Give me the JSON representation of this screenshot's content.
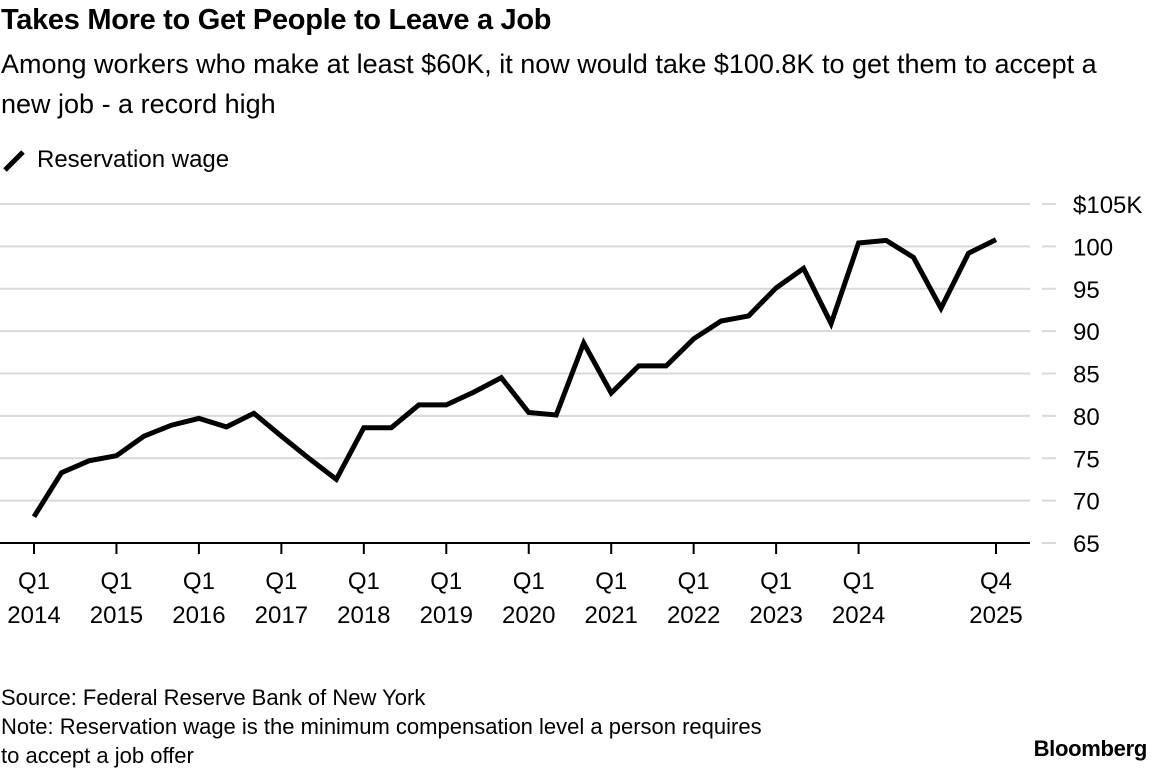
{
  "header": {
    "title": "Takes More to Get People to Leave a Job",
    "subtitle": "Among workers who make at least $60K, it now would take $100.8K to get them to accept a new job - a record high"
  },
  "legend": {
    "icon": "line-swatch-icon",
    "label": "Reservation wage"
  },
  "footer": {
    "source": "Source: Federal Reserve Bank of New York",
    "note_line1": "Note: Reservation wage is the minimum compensation level a person requires",
    "note_line2": "to accept a job offer",
    "brand": "Bloomberg"
  },
  "colors": {
    "line": "#000000",
    "grid": "#d9d9d9",
    "axis": "#000000"
  },
  "chart_data": {
    "type": "line",
    "title": "Takes More to Get People to Leave a Job",
    "subtitle": "Among workers who make at least $60K, it now would take $100.8K to get them to accept a new job - a record high",
    "xlabel": "",
    "ylabel": "",
    "ylim": [
      65,
      105
    ],
    "grid": true,
    "legend_position": "top-left",
    "y_ticks": [
      {
        "value": 105,
        "label": "$105K"
      },
      {
        "value": 100,
        "label": "100"
      },
      {
        "value": 95,
        "label": "95"
      },
      {
        "value": 90,
        "label": "90"
      },
      {
        "value": 85,
        "label": "85"
      },
      {
        "value": 80,
        "label": "80"
      },
      {
        "value": 75,
        "label": "75"
      },
      {
        "value": 70,
        "label": "70"
      },
      {
        "value": 65,
        "label": "65"
      }
    ],
    "x_ticks": [
      {
        "index": 0,
        "line1": "Q1",
        "line2": "2014"
      },
      {
        "index": 3,
        "line1": "Q1",
        "line2": "2015"
      },
      {
        "index": 6,
        "line1": "Q1",
        "line2": "2016"
      },
      {
        "index": 9,
        "line1": "Q1",
        "line2": "2017"
      },
      {
        "index": 12,
        "line1": "Q1",
        "line2": "2018"
      },
      {
        "index": 15,
        "line1": "Q1",
        "line2": "2019"
      },
      {
        "index": 18,
        "line1": "Q1",
        "line2": "2020"
      },
      {
        "index": 21,
        "line1": "Q1",
        "line2": "2021"
      },
      {
        "index": 24,
        "line1": "Q1",
        "line2": "2022"
      },
      {
        "index": 27,
        "line1": "Q1",
        "line2": "2023"
      },
      {
        "index": 30,
        "line1": "Q1",
        "line2": "2024"
      },
      {
        "index": 35,
        "line1": "Q4",
        "line2": "2025"
      }
    ],
    "series": [
      {
        "name": "Reservation wage",
        "unit": "$K",
        "values": [
          68.1,
          73.3,
          74.7,
          75.3,
          77.6,
          78.9,
          79.7,
          78.7,
          80.3,
          77.6,
          75.0,
          72.5,
          78.6,
          78.6,
          81.3,
          81.3,
          82.8,
          84.5,
          80.4,
          80.1,
          88.6,
          82.7,
          85.9,
          85.9,
          89.1,
          91.2,
          91.8,
          95.1,
          97.4,
          90.9,
          100.4,
          100.7,
          98.7,
          92.7,
          99.2,
          100.8
        ]
      }
    ]
  }
}
